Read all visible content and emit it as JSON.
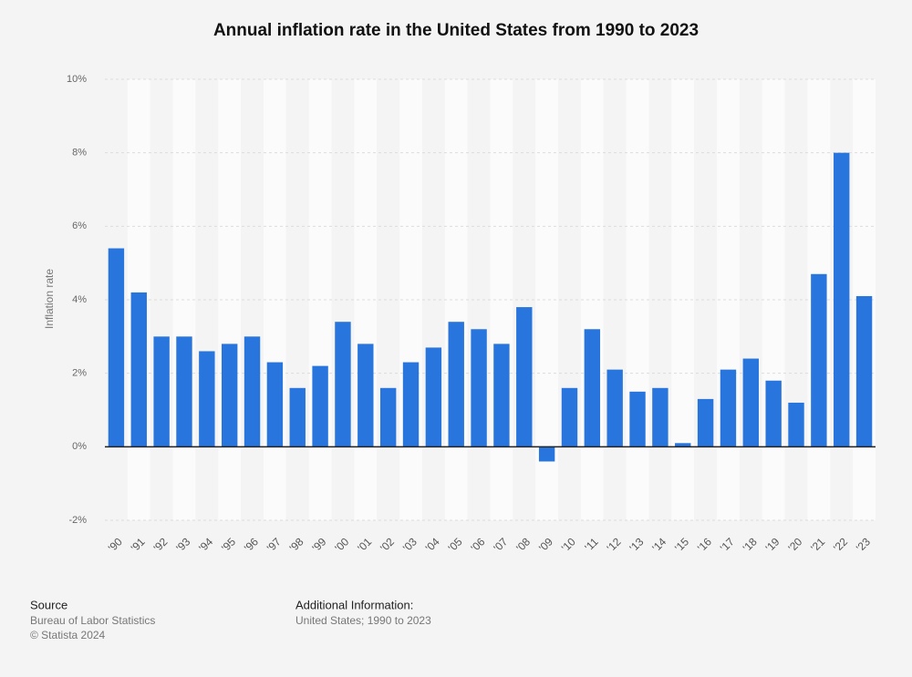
{
  "chart_data": {
    "type": "bar",
    "title": "Annual inflation rate in the United States from 1990 to 2023",
    "y_label": "Inflation rate",
    "categories": [
      "'90",
      "'91",
      "'92",
      "'93",
      "'94",
      "'95",
      "'96",
      "'97",
      "'98",
      "'99",
      "'00",
      "'01",
      "'02",
      "'03",
      "'04",
      "'05",
      "'06",
      "'07",
      "'08",
      "'09",
      "'10",
      "'11",
      "'12",
      "'13",
      "'14",
      "'15",
      "'16",
      "'17",
      "'18",
      "'19",
      "'20",
      "'21",
      "'22",
      "'23"
    ],
    "values": [
      5.4,
      4.2,
      3.0,
      3.0,
      2.6,
      2.8,
      3.0,
      2.3,
      1.6,
      2.2,
      3.4,
      2.8,
      1.6,
      2.3,
      2.7,
      3.4,
      3.2,
      2.8,
      3.8,
      -0.4,
      1.6,
      3.2,
      2.1,
      1.5,
      1.6,
      0.1,
      1.3,
      2.1,
      2.4,
      1.8,
      1.2,
      4.7,
      8.0,
      4.1
    ],
    "color": "#2876dd",
    "ylim": [
      -2,
      10
    ],
    "yticks": [
      {
        "value": -2,
        "label": "-2%"
      },
      {
        "value": 0,
        "label": "0%"
      },
      {
        "value": 2,
        "label": "2%"
      },
      {
        "value": 4,
        "label": "4%"
      },
      {
        "value": 6,
        "label": "6%"
      },
      {
        "value": 8,
        "label": "8%"
      },
      {
        "value": 10,
        "label": "10%"
      }
    ],
    "grid": true
  },
  "footer": {
    "source_title": "Source",
    "source": "Bureau of Labor Statistics",
    "copyright": "© Statista 2024",
    "info_title": "Additional Information:",
    "info": "United States; 1990 to 2023"
  }
}
